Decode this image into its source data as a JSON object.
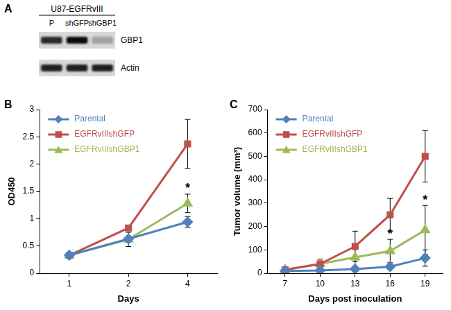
{
  "blot": {
    "panel": "A",
    "title": "U87-EGFRvIII",
    "lanes": [
      "P",
      "shGFP",
      "shGBP1"
    ],
    "rows": [
      {
        "label": "GBP1",
        "intensity": [
          0.8,
          0.95,
          0.25
        ]
      },
      {
        "label": "Actin",
        "intensity": [
          0.85,
          0.85,
          0.85
        ]
      }
    ]
  },
  "chart_data": [
    {
      "panel": "B",
      "type": "line",
      "x_label": "Days",
      "y_label": "OD450",
      "categories": [
        "1",
        "2",
        "4"
      ],
      "series": [
        {
          "name": "Parental",
          "color": "#4f81bd",
          "marker": "diamond",
          "values": [
            0.33,
            0.63,
            0.94
          ],
          "error": [
            0.02,
            0.05,
            0.1
          ]
        },
        {
          "name": "EGFRvIIIshGFP",
          "color": "#c0504d",
          "marker": "square",
          "values": [
            0.33,
            0.83,
            2.37
          ],
          "error": [
            0.02,
            0.05,
            0.45
          ]
        },
        {
          "name": "EGFRvIIIshGBP1",
          "color": "#9bbb59",
          "marker": "triangle",
          "values": [
            0.33,
            0.62,
            1.28
          ],
          "error": [
            0.02,
            0.13,
            0.17
          ]
        }
      ],
      "ylim": [
        0,
        3
      ],
      "yticks": [
        0,
        0.5,
        1,
        1.5,
        2,
        2.5,
        3
      ],
      "grid": false,
      "legend": "upper left",
      "annotations": [
        {
          "text": "*",
          "x": "4",
          "y": 1.55
        }
      ]
    },
    {
      "panel": "C",
      "type": "line",
      "x_label": "Days post inoculation",
      "y_label": "Tumor volume (mm³)",
      "categories": [
        "7",
        "10",
        "13",
        "16",
        "19"
      ],
      "series": [
        {
          "name": "Parental",
          "color": "#4f81bd",
          "marker": "diamond",
          "values": [
            10,
            12,
            18,
            28,
            65
          ],
          "error": [
            3,
            5,
            5,
            10,
            35
          ]
        },
        {
          "name": "EGFRvIIIshGFP",
          "color": "#c0504d",
          "marker": "square",
          "values": [
            15,
            40,
            115,
            250,
            500
          ],
          "error": [
            3,
            10,
            65,
            70,
            110
          ]
        },
        {
          "name": "EGFRvIIIshGBP1",
          "color": "#9bbb59",
          "marker": "triangle",
          "values": [
            15,
            40,
            68,
            95,
            185
          ],
          "error": [
            3,
            20,
            40,
            50,
            105
          ]
        }
      ],
      "ylim": [
        0,
        700
      ],
      "yticks": [
        0,
        100,
        200,
        300,
        400,
        500,
        600,
        700
      ],
      "grid": false,
      "legend": "upper left",
      "annotations": [
        {
          "text": "*",
          "x": "16",
          "y": 165
        },
        {
          "text": "*",
          "x": "19",
          "y": 310
        }
      ]
    }
  ]
}
